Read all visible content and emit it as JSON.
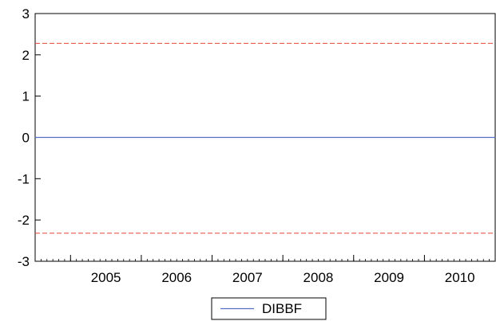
{
  "chart_data": {
    "type": "line",
    "title": "",
    "xlabel": "",
    "ylabel": "",
    "ylim": [
      -3,
      3
    ],
    "yticks": [
      "3",
      "2",
      "1",
      "0",
      "-1",
      "-2",
      "-3"
    ],
    "xtick_labels": [
      "2005",
      "2006",
      "2007",
      "2008",
      "2009",
      "2010"
    ],
    "x_range": [
      "2004-07",
      "2010-12"
    ],
    "series": [
      {
        "name": "DIBBF",
        "color": "#5470c6",
        "style": "solid",
        "x": [
          "2004-07",
          "2010-12"
        ],
        "values": [
          0,
          0
        ]
      }
    ],
    "reference_lines": [
      {
        "value": 2.28,
        "color": "#e8463a",
        "style": "dashed"
      },
      {
        "value": -2.32,
        "color": "#e8463a",
        "style": "dashed"
      }
    ],
    "legend": {
      "position": "bottom-center",
      "entries": [
        "DIBBF"
      ]
    },
    "grid": false
  }
}
